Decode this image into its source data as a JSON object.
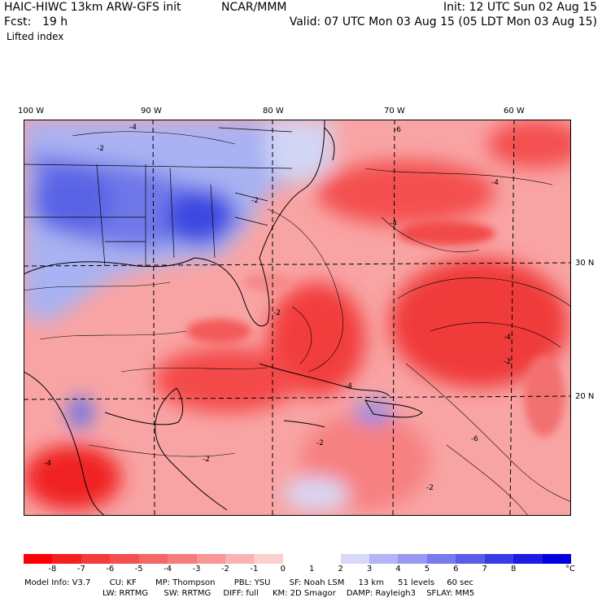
{
  "header": {
    "model": "HAIC-HIWC 13km ARW-GFS init",
    "org": "NCAR/MMM",
    "init": "Init: 12 UTC Sun 02 Aug 15",
    "fcst_label": "Fcst:",
    "fcst_value": "19 h",
    "valid": "Valid: 07 UTC Mon 03 Aug 15 (05 LDT Mon 03 Aug 15)",
    "field": "Lifted index"
  },
  "map": {
    "lon_labels": [
      "100 W",
      "90 W",
      "80 W",
      "70 W",
      "60 W"
    ],
    "lat_labels": [
      "30 N",
      "20 N"
    ],
    "contour_labels": [
      "-2",
      "-4",
      "-6",
      "-2",
      "-4",
      "-2",
      "-4",
      "-2",
      "-4",
      "-6",
      "-2",
      "-2",
      "-4",
      "-2",
      "-4"
    ],
    "colors": {
      "strong_unstable": "#f01818",
      "unstable": "#f56060",
      "weak_unstable": "#fbb0b0",
      "neutral": "#ffffff",
      "stable": "#8080f0",
      "strong_stable": "#3030e0",
      "coast": "#000000",
      "grid": "#000000"
    }
  },
  "scale": {
    "colors": [
      "#ff0000",
      "#f42020",
      "#f43a3a",
      "#f45050",
      "#f56666",
      "#f77c7c",
      "#f99696",
      "#fbb2b2",
      "#fdd0d0",
      "#ffffff",
      "#ffffff",
      "#d8d8fb",
      "#b4b4f7",
      "#9898f3",
      "#7a7aef",
      "#5c5ceb",
      "#3c3ce7",
      "#1c1ce3",
      "#0000df"
    ],
    "labels": [
      "-8",
      "-7",
      "-6",
      "-5",
      "-4",
      "-3",
      "-2",
      "-1",
      "0",
      "1",
      "2",
      "3",
      "4",
      "5",
      "6",
      "7",
      "8"
    ],
    "unit": "°C"
  },
  "model_info": {
    "line1": [
      "Model Info: V3.7",
      "CU: KF",
      "MP: Thompson",
      "PBL: YSU",
      "SF: Noah LSM",
      "13 km",
      "51 levels",
      "60 sec"
    ],
    "line2": [
      "LW: RRTMG",
      "SW: RRTMG",
      "DIFF: full",
      "KM: 2D Smagor",
      "DAMP: Rayleigh3",
      "SFLAY: MM5"
    ]
  }
}
